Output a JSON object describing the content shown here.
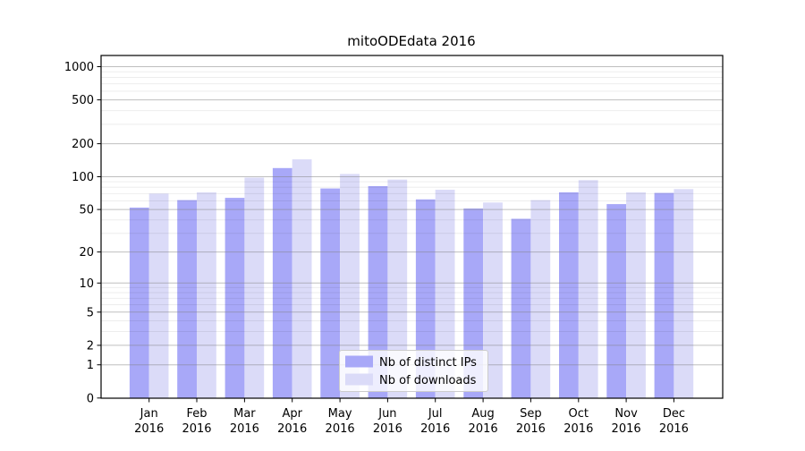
{
  "chart_data": {
    "type": "bar",
    "title": "mitoODEdata 2016",
    "categories": [
      "Jan",
      "Feb",
      "Mar",
      "Apr",
      "May",
      "Jun",
      "Jul",
      "Aug",
      "Sep",
      "Oct",
      "Nov",
      "Dec"
    ],
    "x_year_label": "2016",
    "series": [
      {
        "name": "Nb of distinct IPs",
        "color": "#a8a8f8",
        "values": [
          52,
          61,
          64,
          120,
          78,
          82,
          62,
          51,
          41,
          72,
          56,
          71
        ]
      },
      {
        "name": "Nb of downloads",
        "color": "#dbdbf8",
        "values": [
          70,
          72,
          98,
          144,
          106,
          94,
          76,
          58,
          61,
          93,
          72,
          77
        ]
      }
    ],
    "xlabel": "",
    "ylabel": "",
    "yscale": "log1p",
    "ylim": [
      0,
      1265
    ],
    "y_major_ticks": [
      0,
      1,
      2,
      5,
      10,
      20,
      50,
      100,
      200,
      500,
      1000
    ],
    "y_minor_ticks": [
      3,
      4,
      6,
      7,
      8,
      9,
      30,
      40,
      60,
      70,
      80,
      90,
      300,
      400,
      600,
      700,
      800,
      900
    ],
    "grid": "major-and-minor, drawn over bars",
    "legend_position": "lower center"
  },
  "colors": {
    "background": "#ffffff",
    "axis": "#000000",
    "major_grid": "#808080",
    "minor_grid": "#000000",
    "legend_border": "#cccccc"
  }
}
